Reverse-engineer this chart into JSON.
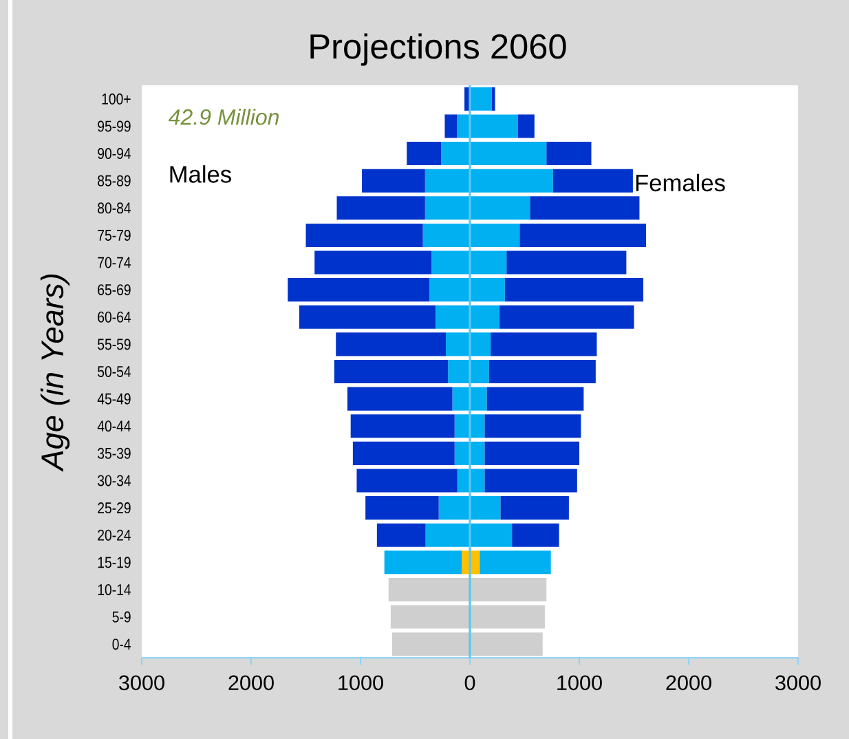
{
  "chart_data": {
    "type": "bar",
    "orientation": "horizontal",
    "stacked": true,
    "title": "Projections 2060",
    "ylabel": "Age (in Years)",
    "annotations": [
      "42.9 Million",
      "Males",
      "Females"
    ],
    "categories": [
      "100+",
      "95-99",
      "90-94",
      "85-89",
      "80-84",
      "75-79",
      "70-74",
      "65-69",
      "60-64",
      "55-59",
      "50-54",
      "45-49",
      "40-44",
      "35-39",
      "30-34",
      "25-29",
      "20-24",
      "15-19",
      "10-14",
      "5-9",
      "0-4"
    ],
    "xlim": [
      -3000,
      3000
    ],
    "xticks": [
      {
        "value": -3000,
        "label": "3000"
      },
      {
        "value": -2000,
        "label": "2000"
      },
      {
        "value": -1000,
        "label": "1000"
      },
      0,
      1000,
      2000,
      3000
    ],
    "series": [
      {
        "color": "#ffc000",
        "values": [
          null,
          null,
          null,
          null,
          null,
          null,
          null,
          null,
          null,
          null,
          null,
          null,
          null,
          null,
          null,
          null,
          null,
          -75,
          null,
          null,
          null
        ]
      },
      {
        "color": "#ffc000",
        "values": [
          null,
          null,
          null,
          null,
          null,
          null,
          null,
          null,
          null,
          null,
          null,
          null,
          null,
          null,
          null,
          null,
          null,
          90,
          null,
          null,
          null
        ]
      },
      {
        "color": "#cfcfcf",
        "values": [
          null,
          null,
          null,
          null,
          null,
          null,
          null,
          null,
          null,
          null,
          null,
          null,
          null,
          null,
          null,
          null,
          null,
          null,
          -744,
          -724,
          -711
        ]
      },
      {
        "color": "#cfcfcf",
        "values": [
          null,
          null,
          null,
          null,
          null,
          null,
          null,
          null,
          null,
          null,
          null,
          null,
          null,
          null,
          null,
          null,
          null,
          null,
          700,
          685,
          665
        ]
      },
      {
        "color": "#00b0f0",
        "values": [
          null,
          -117,
          -263,
          -410,
          -410,
          -430,
          -350,
          -370,
          -315,
          -220,
          -200,
          -160,
          -140,
          -140,
          -115,
          -285,
          -405,
          -707,
          null,
          null,
          null
        ]
      },
      {
        "color": "#00b0f0",
        "values": [
          200,
          440,
          700,
          760,
          550,
          455,
          335,
          320,
          270,
          190,
          175,
          155,
          135,
          135,
          135,
          280,
          385,
          650,
          null,
          null,
          null
        ]
      },
      {
        "color": "#0033cc",
        "values": [
          -50,
          -113,
          -314,
          -577,
          -807,
          -1070,
          -1070,
          -1295,
          -1245,
          -1005,
          -1040,
          -960,
          -950,
          -930,
          -920,
          -670,
          -445,
          null,
          null,
          null,
          null
        ]
      },
      {
        "color": "#0033cc",
        "values": [
          30,
          150,
          410,
          730,
          1000,
          1155,
          1095,
          1265,
          1230,
          970,
          975,
          885,
          880,
          865,
          845,
          625,
          430,
          null,
          null,
          null,
          null
        ]
      }
    ],
    "ref_lines": [
      {
        "axis": "x",
        "value": 0,
        "color": "#5bc8f0"
      }
    ]
  }
}
